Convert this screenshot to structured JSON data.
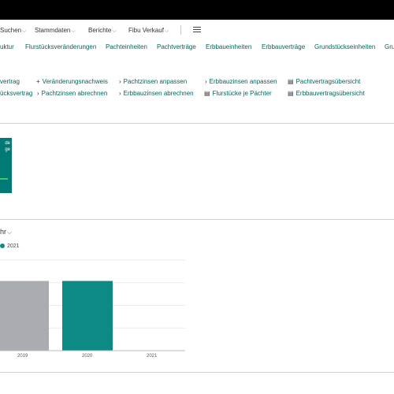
{
  "menu": {
    "items": [
      {
        "label": "Suchen"
      },
      {
        "label": "Stammdaten"
      },
      {
        "label": "Berichte"
      },
      {
        "label": "Fibu Verkauf"
      }
    ]
  },
  "nav": {
    "links": [
      "uktur",
      "Flurstücksveränderungen",
      "Pachteinheiten",
      "Pachtverträge",
      "Erbbaueinheiten",
      "Erbbauverträge",
      "Grundstückseinheiten",
      "Gru"
    ]
  },
  "actions": {
    "row1": [
      {
        "icon": "",
        "label": "vertrag"
      },
      {
        "icon": "+",
        "label": "Veränderungsnachweis"
      },
      {
        "icon": "›",
        "label": "Pachtzinsen anpassen"
      },
      {
        "icon": "›",
        "label": "Erbbauzinsen anpassen"
      },
      {
        "icon": "▤",
        "label": "Pachtvertragsübersicht"
      }
    ],
    "row2": [
      {
        "icon": "",
        "label": "ücksvertrag"
      },
      {
        "icon": "›",
        "label": "Pachtzinsen abrechnen"
      },
      {
        "icon": "›",
        "label": "Erbbauzinsen abrechnen"
      },
      {
        "icon": "▤",
        "label": "Flurstücke je Pächter"
      },
      {
        "icon": "▤",
        "label": "Erbbauvertragsübersicht"
      }
    ]
  },
  "tile": {
    "line1": "de",
    "line2": "ge"
  },
  "chart_section": {
    "title": "hr"
  },
  "chart_data": {
    "type": "bar",
    "categories": [
      "2019",
      "2020",
      "2021"
    ],
    "series": [
      {
        "name": "",
        "values": [
          1,
          1,
          0
        ],
        "color": "#a9adb2"
      },
      {
        "name": "2021",
        "values": [
          0,
          0,
          0
        ],
        "color": "#14878a"
      }
    ],
    "bars": [
      {
        "category": "2019",
        "value": 1,
        "color": "#a9adb2"
      },
      {
        "category": "2020",
        "value": 1,
        "color": "#0e8a86"
      }
    ],
    "legend": [
      "2021"
    ],
    "ylim": [
      0,
      1.3
    ],
    "grid": true
  }
}
